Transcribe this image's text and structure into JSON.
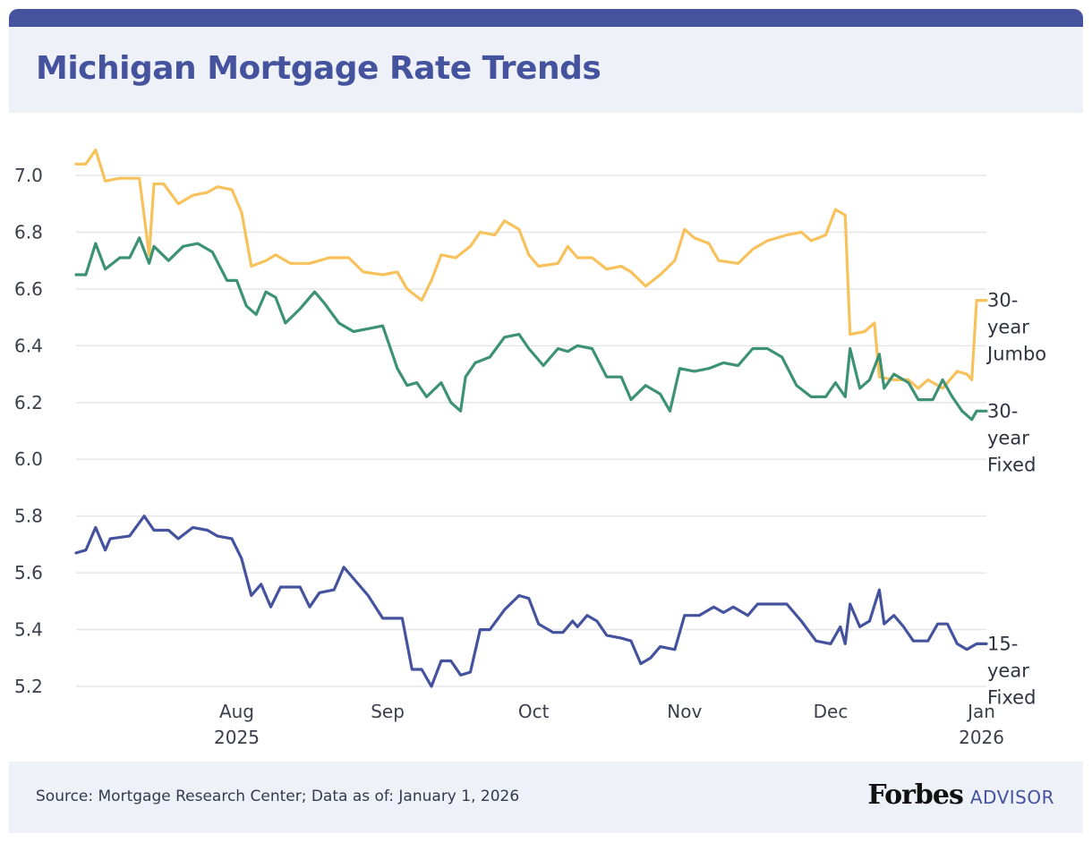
{
  "title": "Michigan Mortgage Rate Trends",
  "source": "Source: Mortgage Research Center; Data as of: January 1, 2026",
  "brand": {
    "main": "Forbes",
    "sub": "ADVISOR"
  },
  "chart_data": {
    "type": "line",
    "title": "Michigan Mortgage Rate Trends",
    "xlabel": "",
    "ylabel": "",
    "ylim": [
      5.2,
      7.0
    ],
    "xlim": [
      "2025-06-29",
      "2026-01-02"
    ],
    "grid": true,
    "legend": "series labels at right end of lines",
    "y_ticks": [
      "7.0",
      "6.8",
      "6.6",
      "6.4",
      "6.2",
      "6.0",
      "5.8",
      "5.6",
      "5.4",
      "5.2"
    ],
    "x_ticks": [
      {
        "date": "2025-08-01",
        "label": "Aug",
        "sublabel": "2025"
      },
      {
        "date": "2025-09-01",
        "label": "Sep",
        "sublabel": ""
      },
      {
        "date": "2025-10-01",
        "label": "Oct",
        "sublabel": ""
      },
      {
        "date": "2025-11-01",
        "label": "Nov",
        "sublabel": ""
      },
      {
        "date": "2025-12-01",
        "label": "Dec",
        "sublabel": ""
      },
      {
        "date": "2026-01-01",
        "label": "Jan",
        "sublabel": "2026"
      }
    ],
    "series": [
      {
        "name": "30-year Jumbo",
        "label_lines": [
          "30-",
          "year",
          "Jumbo"
        ],
        "color": "#f7c15c",
        "points": [
          [
            "2025-06-29",
            7.04
          ],
          [
            "2025-07-01",
            7.04
          ],
          [
            "2025-07-03",
            7.09
          ],
          [
            "2025-07-05",
            6.98
          ],
          [
            "2025-07-08",
            6.99
          ],
          [
            "2025-07-12",
            6.99
          ],
          [
            "2025-07-14",
            6.72
          ],
          [
            "2025-07-15",
            6.97
          ],
          [
            "2025-07-17",
            6.97
          ],
          [
            "2025-07-20",
            6.9
          ],
          [
            "2025-07-23",
            6.93
          ],
          [
            "2025-07-26",
            6.94
          ],
          [
            "2025-07-28",
            6.96
          ],
          [
            "2025-07-31",
            6.95
          ],
          [
            "2025-08-02",
            6.87
          ],
          [
            "2025-08-04",
            6.68
          ],
          [
            "2025-08-07",
            6.7
          ],
          [
            "2025-08-09",
            6.72
          ],
          [
            "2025-08-12",
            6.69
          ],
          [
            "2025-08-16",
            6.69
          ],
          [
            "2025-08-20",
            6.71
          ],
          [
            "2025-08-24",
            6.71
          ],
          [
            "2025-08-27",
            6.66
          ],
          [
            "2025-08-31",
            6.65
          ],
          [
            "2025-09-03",
            6.66
          ],
          [
            "2025-09-05",
            6.6
          ],
          [
            "2025-09-08",
            6.56
          ],
          [
            "2025-09-10",
            6.63
          ],
          [
            "2025-09-12",
            6.72
          ],
          [
            "2025-09-15",
            6.71
          ],
          [
            "2025-09-18",
            6.75
          ],
          [
            "2025-09-20",
            6.8
          ],
          [
            "2025-09-23",
            6.79
          ],
          [
            "2025-09-25",
            6.84
          ],
          [
            "2025-09-28",
            6.81
          ],
          [
            "2025-09-30",
            6.72
          ],
          [
            "2025-10-02",
            6.68
          ],
          [
            "2025-10-06",
            6.69
          ],
          [
            "2025-10-08",
            6.75
          ],
          [
            "2025-10-10",
            6.71
          ],
          [
            "2025-10-13",
            6.71
          ],
          [
            "2025-10-16",
            6.67
          ],
          [
            "2025-10-19",
            6.68
          ],
          [
            "2025-10-21",
            6.66
          ],
          [
            "2025-10-24",
            6.61
          ],
          [
            "2025-10-27",
            6.65
          ],
          [
            "2025-10-30",
            6.7
          ],
          [
            "2025-11-01",
            6.81
          ],
          [
            "2025-11-03",
            6.78
          ],
          [
            "2025-11-06",
            6.76
          ],
          [
            "2025-11-08",
            6.7
          ],
          [
            "2025-11-12",
            6.69
          ],
          [
            "2025-11-15",
            6.74
          ],
          [
            "2025-11-18",
            6.77
          ],
          [
            "2025-11-22",
            6.79
          ],
          [
            "2025-11-25",
            6.8
          ],
          [
            "2025-11-27",
            6.77
          ],
          [
            "2025-11-30",
            6.79
          ],
          [
            "2025-12-02",
            6.88
          ],
          [
            "2025-12-04",
            6.86
          ],
          [
            "2025-12-05",
            6.44
          ],
          [
            "2025-12-08",
            6.45
          ],
          [
            "2025-12-10",
            6.48
          ],
          [
            "2025-12-11",
            6.29
          ],
          [
            "2025-12-14",
            6.28
          ],
          [
            "2025-12-17",
            6.28
          ],
          [
            "2025-12-19",
            6.25
          ],
          [
            "2025-12-21",
            6.28
          ],
          [
            "2025-12-24",
            6.25
          ],
          [
            "2025-12-27",
            6.31
          ],
          [
            "2025-12-29",
            6.3
          ],
          [
            "2025-12-30",
            6.28
          ],
          [
            "2025-12-31",
            6.56
          ],
          [
            "2026-01-02",
            6.56
          ]
        ]
      },
      {
        "name": "30-year Fixed",
        "label_lines": [
          "30-",
          "year",
          "Fixed"
        ],
        "color": "#3d9273",
        "points": [
          [
            "2025-06-29",
            6.65
          ],
          [
            "2025-07-01",
            6.65
          ],
          [
            "2025-07-03",
            6.76
          ],
          [
            "2025-07-05",
            6.67
          ],
          [
            "2025-07-08",
            6.71
          ],
          [
            "2025-07-10",
            6.71
          ],
          [
            "2025-07-12",
            6.78
          ],
          [
            "2025-07-14",
            6.69
          ],
          [
            "2025-07-15",
            6.75
          ],
          [
            "2025-07-18",
            6.7
          ],
          [
            "2025-07-21",
            6.75
          ],
          [
            "2025-07-24",
            6.76
          ],
          [
            "2025-07-27",
            6.73
          ],
          [
            "2025-07-30",
            6.63
          ],
          [
            "2025-08-01",
            6.63
          ],
          [
            "2025-08-03",
            6.54
          ],
          [
            "2025-08-05",
            6.51
          ],
          [
            "2025-08-07",
            6.59
          ],
          [
            "2025-08-09",
            6.57
          ],
          [
            "2025-08-11",
            6.48
          ],
          [
            "2025-08-14",
            6.53
          ],
          [
            "2025-08-17",
            6.59
          ],
          [
            "2025-08-19",
            6.55
          ],
          [
            "2025-08-22",
            6.48
          ],
          [
            "2025-08-25",
            6.45
          ],
          [
            "2025-08-28",
            6.46
          ],
          [
            "2025-08-31",
            6.47
          ],
          [
            "2025-09-03",
            6.32
          ],
          [
            "2025-09-05",
            6.26
          ],
          [
            "2025-09-07",
            6.27
          ],
          [
            "2025-09-09",
            6.22
          ],
          [
            "2025-09-12",
            6.27
          ],
          [
            "2025-09-14",
            6.2
          ],
          [
            "2025-09-16",
            6.17
          ],
          [
            "2025-09-17",
            6.29
          ],
          [
            "2025-09-19",
            6.34
          ],
          [
            "2025-09-22",
            6.36
          ],
          [
            "2025-09-25",
            6.43
          ],
          [
            "2025-09-28",
            6.44
          ],
          [
            "2025-09-30",
            6.39
          ],
          [
            "2025-10-03",
            6.33
          ],
          [
            "2025-10-06",
            6.39
          ],
          [
            "2025-10-08",
            6.38
          ],
          [
            "2025-10-10",
            6.4
          ],
          [
            "2025-10-13",
            6.39
          ],
          [
            "2025-10-16",
            6.29
          ],
          [
            "2025-10-19",
            6.29
          ],
          [
            "2025-10-21",
            6.21
          ],
          [
            "2025-10-24",
            6.26
          ],
          [
            "2025-10-27",
            6.23
          ],
          [
            "2025-10-29",
            6.17
          ],
          [
            "2025-10-31",
            6.32
          ],
          [
            "2025-11-03",
            6.31
          ],
          [
            "2025-11-06",
            6.32
          ],
          [
            "2025-11-09",
            6.34
          ],
          [
            "2025-11-12",
            6.33
          ],
          [
            "2025-11-15",
            6.39
          ],
          [
            "2025-11-18",
            6.39
          ],
          [
            "2025-11-21",
            6.36
          ],
          [
            "2025-11-24",
            6.26
          ],
          [
            "2025-11-27",
            6.22
          ],
          [
            "2025-11-30",
            6.22
          ],
          [
            "2025-12-02",
            6.27
          ],
          [
            "2025-12-04",
            6.22
          ],
          [
            "2025-12-05",
            6.39
          ],
          [
            "2025-12-07",
            6.25
          ],
          [
            "2025-12-09",
            6.28
          ],
          [
            "2025-12-11",
            6.37
          ],
          [
            "2025-12-12",
            6.25
          ],
          [
            "2025-12-14",
            6.3
          ],
          [
            "2025-12-17",
            6.27
          ],
          [
            "2025-12-19",
            6.21
          ],
          [
            "2025-12-22",
            6.21
          ],
          [
            "2025-12-24",
            6.28
          ],
          [
            "2025-12-26",
            6.22
          ],
          [
            "2025-12-28",
            6.17
          ],
          [
            "2025-12-30",
            6.14
          ],
          [
            "2025-12-31",
            6.17
          ],
          [
            "2026-01-02",
            6.17
          ]
        ]
      },
      {
        "name": "15-year Fixed",
        "label_lines": [
          "15-",
          "year",
          "Fixed"
        ],
        "color": "#45539e",
        "points": [
          [
            "2025-06-29",
            5.67
          ],
          [
            "2025-07-01",
            5.68
          ],
          [
            "2025-07-03",
            5.76
          ],
          [
            "2025-07-05",
            5.68
          ],
          [
            "2025-07-06",
            5.72
          ],
          [
            "2025-07-10",
            5.73
          ],
          [
            "2025-07-13",
            5.8
          ],
          [
            "2025-07-15",
            5.75
          ],
          [
            "2025-07-18",
            5.75
          ],
          [
            "2025-07-20",
            5.72
          ],
          [
            "2025-07-23",
            5.76
          ],
          [
            "2025-07-26",
            5.75
          ],
          [
            "2025-07-28",
            5.73
          ],
          [
            "2025-07-31",
            5.72
          ],
          [
            "2025-08-02",
            5.65
          ],
          [
            "2025-08-04",
            5.52
          ],
          [
            "2025-08-06",
            5.56
          ],
          [
            "2025-08-08",
            5.48
          ],
          [
            "2025-08-10",
            5.55
          ],
          [
            "2025-08-14",
            5.55
          ],
          [
            "2025-08-16",
            5.48
          ],
          [
            "2025-08-18",
            5.53
          ],
          [
            "2025-08-21",
            5.54
          ],
          [
            "2025-08-23",
            5.62
          ],
          [
            "2025-08-25",
            5.58
          ],
          [
            "2025-08-28",
            5.52
          ],
          [
            "2025-08-31",
            5.44
          ],
          [
            "2025-09-04",
            5.44
          ],
          [
            "2025-09-06",
            5.26
          ],
          [
            "2025-09-08",
            5.26
          ],
          [
            "2025-09-10",
            5.2
          ],
          [
            "2025-09-12",
            5.29
          ],
          [
            "2025-09-14",
            5.29
          ],
          [
            "2025-09-16",
            5.24
          ],
          [
            "2025-09-18",
            5.25
          ],
          [
            "2025-09-20",
            5.4
          ],
          [
            "2025-09-22",
            5.4
          ],
          [
            "2025-09-25",
            5.47
          ],
          [
            "2025-09-28",
            5.52
          ],
          [
            "2025-09-30",
            5.51
          ],
          [
            "2025-10-02",
            5.42
          ],
          [
            "2025-10-05",
            5.39
          ],
          [
            "2025-10-07",
            5.39
          ],
          [
            "2025-10-09",
            5.43
          ],
          [
            "2025-10-10",
            5.41
          ],
          [
            "2025-10-12",
            5.45
          ],
          [
            "2025-10-14",
            5.43
          ],
          [
            "2025-10-16",
            5.38
          ],
          [
            "2025-10-19",
            5.37
          ],
          [
            "2025-10-21",
            5.36
          ],
          [
            "2025-10-23",
            5.28
          ],
          [
            "2025-10-25",
            5.3
          ],
          [
            "2025-10-27",
            5.34
          ],
          [
            "2025-10-30",
            5.33
          ],
          [
            "2025-11-01",
            5.45
          ],
          [
            "2025-11-04",
            5.45
          ],
          [
            "2025-11-07",
            5.48
          ],
          [
            "2025-11-09",
            5.46
          ],
          [
            "2025-11-11",
            5.48
          ],
          [
            "2025-11-14",
            5.45
          ],
          [
            "2025-11-16",
            5.49
          ],
          [
            "2025-11-19",
            5.49
          ],
          [
            "2025-11-22",
            5.49
          ],
          [
            "2025-11-25",
            5.43
          ],
          [
            "2025-11-28",
            5.36
          ],
          [
            "2025-12-01",
            5.35
          ],
          [
            "2025-12-03",
            5.41
          ],
          [
            "2025-12-04",
            5.35
          ],
          [
            "2025-12-05",
            5.49
          ],
          [
            "2025-12-07",
            5.41
          ],
          [
            "2025-12-09",
            5.43
          ],
          [
            "2025-12-11",
            5.54
          ],
          [
            "2025-12-12",
            5.42
          ],
          [
            "2025-12-14",
            5.45
          ],
          [
            "2025-12-16",
            5.41
          ],
          [
            "2025-12-18",
            5.36
          ],
          [
            "2025-12-21",
            5.36
          ],
          [
            "2025-12-23",
            5.42
          ],
          [
            "2025-12-25",
            5.42
          ],
          [
            "2025-12-27",
            5.35
          ],
          [
            "2025-12-29",
            5.33
          ],
          [
            "2025-12-31",
            5.35
          ],
          [
            "2026-01-02",
            5.35
          ]
        ]
      }
    ]
  }
}
